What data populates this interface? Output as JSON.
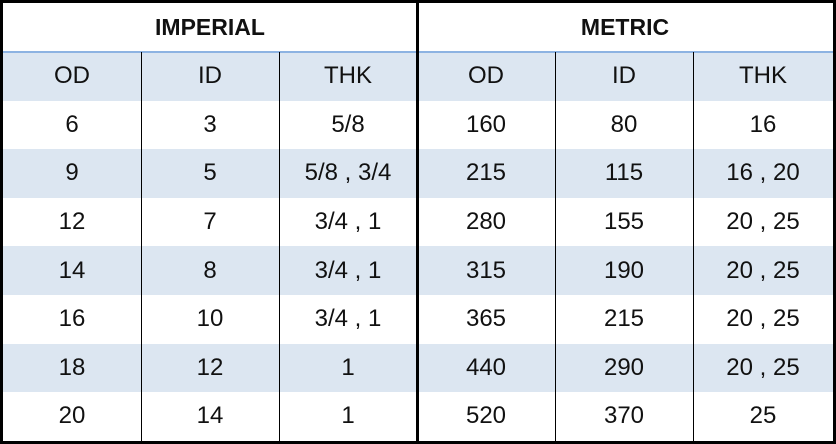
{
  "table": {
    "groups": [
      "IMPERIAL",
      "METRIC"
    ],
    "header": [
      "OD",
      "ID",
      "THK",
      "OD",
      "ID",
      "THK"
    ],
    "rows": [
      [
        "6",
        "3",
        "5/8",
        "160",
        "80",
        "16"
      ],
      [
        "9",
        "5",
        "5/8 , 3/4",
        "215",
        "115",
        "16 , 20"
      ],
      [
        "12",
        "7",
        "3/4 , 1",
        "280",
        "155",
        "20 , 25"
      ],
      [
        "14",
        "8",
        "3/4 , 1",
        "315",
        "190",
        "20 , 25"
      ],
      [
        "16",
        "10",
        "3/4 , 1",
        "365",
        "215",
        "20 , 25"
      ],
      [
        "18",
        "12",
        "1",
        "440",
        "290",
        "20 , 25"
      ],
      [
        "20",
        "14",
        "1",
        "520",
        "370",
        "25"
      ]
    ]
  }
}
